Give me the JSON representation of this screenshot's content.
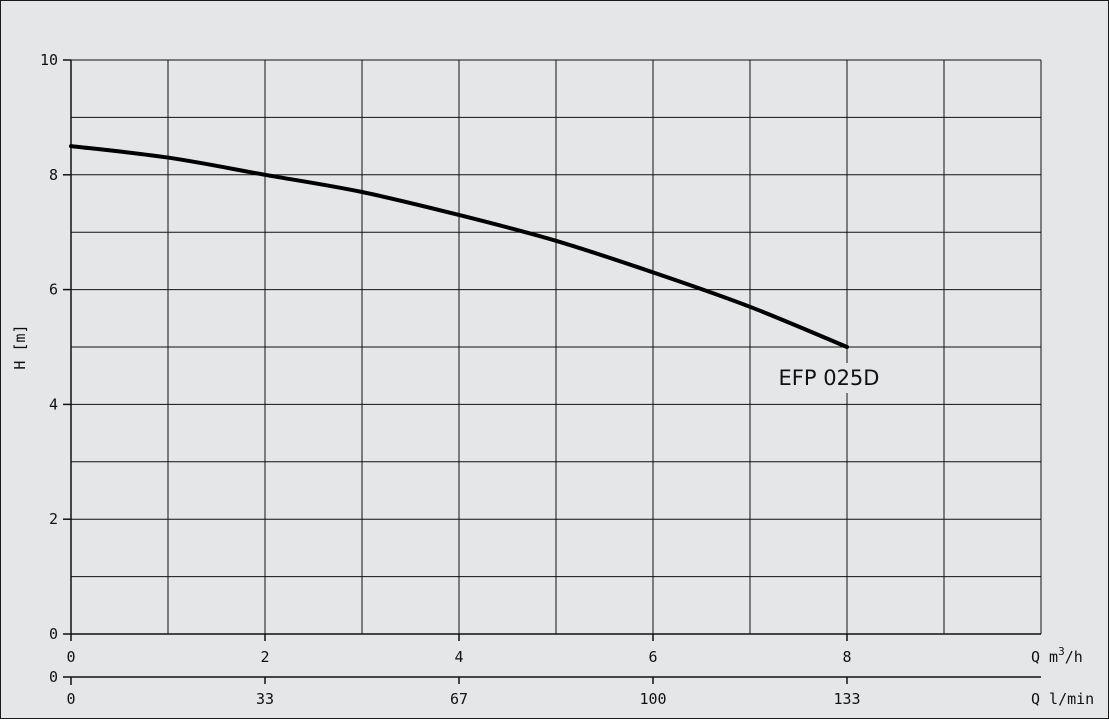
{
  "chart_data": {
    "type": "line",
    "ylabel": "H [m]",
    "ylim": [
      0,
      10
    ],
    "yticks": [
      "0",
      "2",
      "4",
      "6",
      "8",
      "10"
    ],
    "xlim": [
      0,
      10
    ],
    "x_axis_primary": {
      "label_prefix": "Q",
      "label_unit": "m",
      "label_sup": "3",
      "label_suffix": "/h",
      "tick_values": [
        0,
        2,
        4,
        6,
        8
      ],
      "tick_labels": [
        "0",
        "2",
        "4",
        "6",
        "8"
      ]
    },
    "x_axis_secondary": {
      "label": "Q  l/min",
      "zero_label": "0",
      "tick_values": [
        0,
        2,
        4,
        6,
        8
      ],
      "tick_labels": [
        "0",
        "33",
        "67",
        "100",
        "133"
      ]
    },
    "grid": true,
    "series": [
      {
        "name": "EFP 025D",
        "x": [
          0,
          1,
          2,
          3,
          4,
          5,
          6,
          7,
          8
        ],
        "y": [
          8.5,
          8.3,
          8.0,
          7.7,
          7.3,
          6.85,
          6.3,
          5.7,
          5.0
        ]
      }
    ]
  }
}
